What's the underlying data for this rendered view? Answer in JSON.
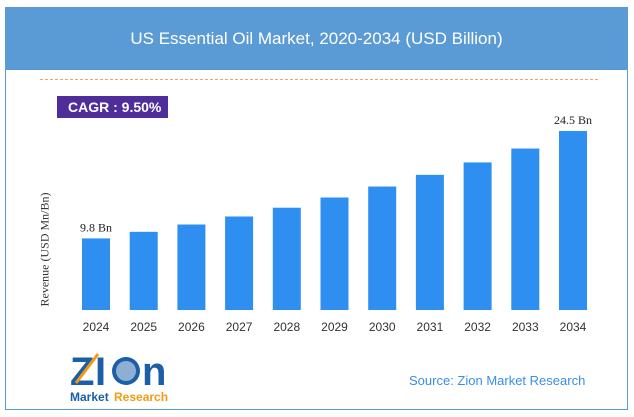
{
  "chart_data": {
    "type": "bar",
    "title": "US Essential Oil Market, 2020-2034 (USD Billion)",
    "ylabel": "Revenue (USD Mn/Bn)",
    "categories": [
      "2024",
      "2025",
      "2026",
      "2027",
      "2028",
      "2029",
      "2030",
      "2031",
      "2032",
      "2033",
      "2034"
    ],
    "values": [
      9.8,
      10.7,
      11.7,
      12.8,
      14.0,
      15.4,
      16.9,
      18.5,
      20.2,
      22.1,
      24.5
    ],
    "data_labels": {
      "0": "9.8 Bn",
      "10": "24.5 Bn"
    },
    "ylim": [
      0,
      25
    ],
    "grid": false,
    "bar_color": "#2e8ff0"
  },
  "cagr": "CAGR :  9.50%",
  "source": "Source: Zion Market Research",
  "logo": {
    "text": "Zion",
    "subtext_1": "Market",
    "subtext_2": "Research"
  },
  "colors": {
    "header": "#5b9bd5",
    "cagr_bg": "#4f2d9b",
    "dash": "#f4a460"
  }
}
